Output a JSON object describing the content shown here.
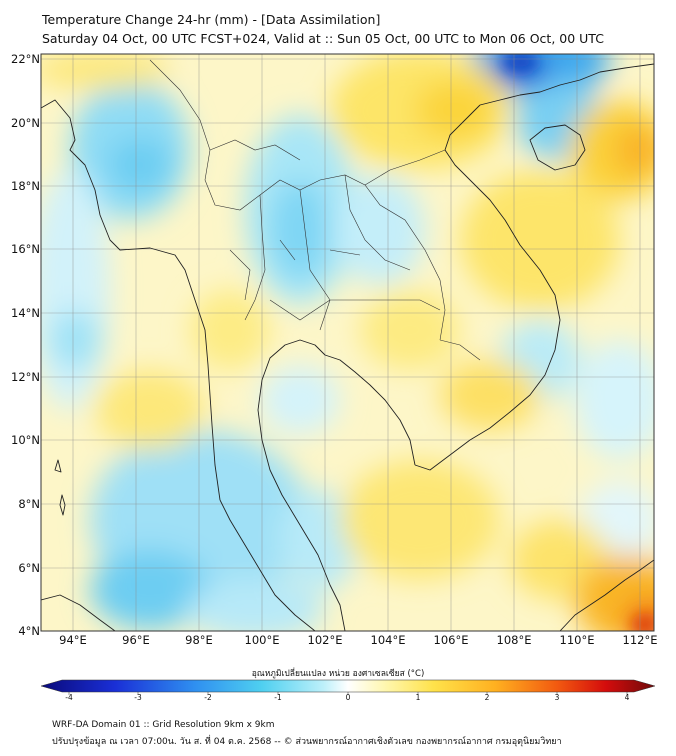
{
  "title": {
    "line1": "Temperature Change 24-hr (mm) - [Data Assimilation]",
    "line2": "Saturday 04 Oct, 00 UTC FCST+024, Valid at :: Sun 05 Oct, 00 UTC to Mon 06 Oct, 00 UTC"
  },
  "lat_labels": [
    "22°N",
    "20°N",
    "18°N",
    "16°N",
    "14°N",
    "12°N",
    "10°N",
    "8°N",
    "6°N",
    "4°N"
  ],
  "lon_labels": [
    "94°E",
    "96°E",
    "98°E",
    "100°E",
    "102°E",
    "104°E",
    "106°E",
    "108°E",
    "110°E",
    "112°E"
  ],
  "colorbar": {
    "title": "อุณหภูมิเปลี่ยนแปลง หน่วย องศาเซลเซียส (°C)",
    "ticks": [
      "-4",
      "-3",
      "-2",
      "-1",
      "0",
      "1",
      "2",
      "3",
      "4"
    ],
    "range": [
      -4,
      4
    ],
    "colors": [
      "#0a0a7a",
      "#1a2fd6",
      "#2f8ff0",
      "#4fd0f0",
      "#bdf0fa",
      "#ffffff",
      "#fff7b0",
      "#ffe24a",
      "#ffb020",
      "#f25a10",
      "#d40c0c",
      "#6e0a0a"
    ]
  },
  "footer": {
    "line1": "WRF-DA Domain 01 :: Grid Resolution 9km x 9km",
    "line2": "ปรับปรุงข้อมูล ณ เวลา 07:00น. วัน ส. ที่ 04 ต.ค. 2568 -- © ส่วนพยากรณ์อากาศเชิงตัวเลข กองพยากรณ์อากาศ กรมอุตุนิยมวิทยา"
  }
}
